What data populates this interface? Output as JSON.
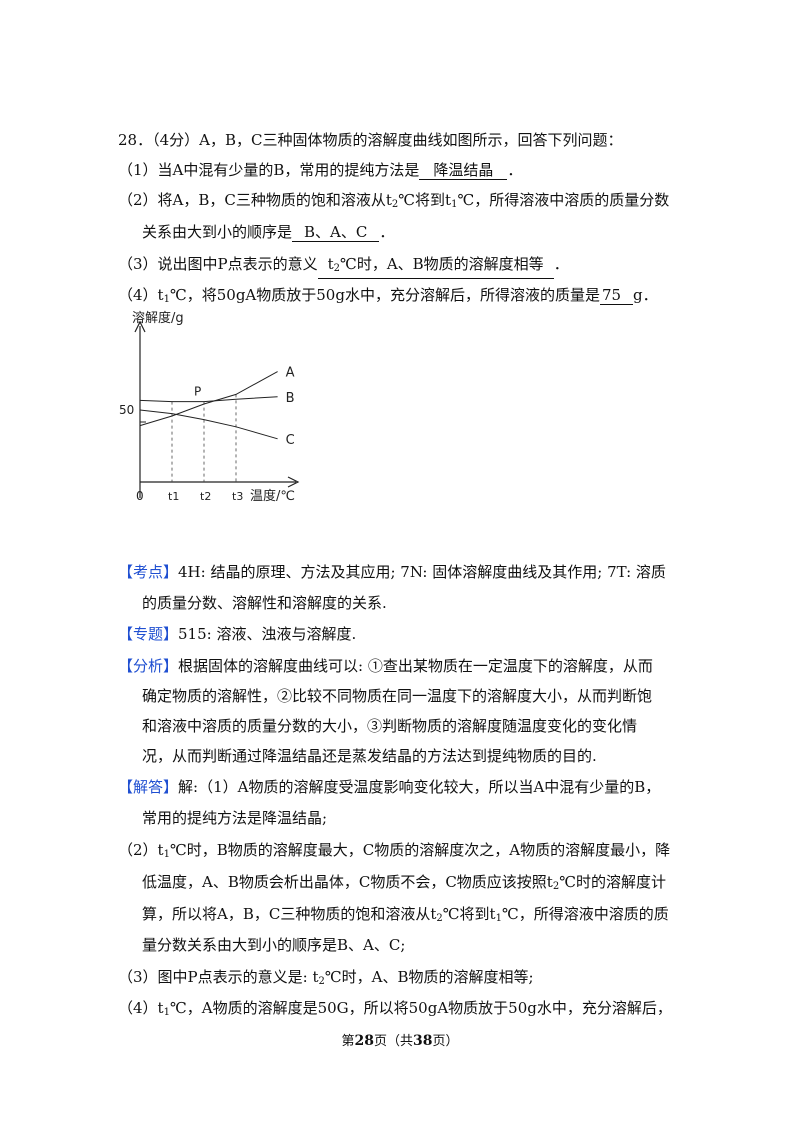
{
  "question": {
    "header": "28．（4分）A，B，C三种固体物质的溶解度曲线如图所示，回答下列问题：",
    "q1_prefix": "（1）当A中混有少量的B，常用的提纯方法是",
    "q1_answer": "降温结晶",
    "q2_a": "（2）将A，B，C三种物质的饱和溶液从t",
    "q2_b": "℃将到t",
    "q2_c": "℃，所得溶液中溶质的质量分数",
    "q2_d": "关系由大到小的顺序是",
    "q2_answer": "B、A、C",
    "q3_prefix": "（3）说出图中P点表示的意义",
    "q3_ans_a": "t",
    "q3_ans_b": "℃时，A、B物质的溶解度相等",
    "q4_a": "（4）t",
    "q4_b": "℃，将50gA物质放于50g水中，充分溶解后，所得溶液的质量是",
    "q4_answer": "75",
    "q4_unit": "g",
    "sub1": "1",
    "sub2": "2",
    "end_dot": "．"
  },
  "chart_data": {
    "type": "line",
    "ylabel": "溶解度/g",
    "xlabel": "温度/℃",
    "origin_label": "0",
    "x_ticks": [
      "t1",
      "t2",
      "t3"
    ],
    "y_ticks": [
      "50"
    ],
    "point_label": "P",
    "series": [
      {
        "name": "A",
        "points": [
          [
            0,
            47
          ],
          [
            1,
            55
          ],
          [
            2,
            65
          ],
          [
            3,
            73
          ],
          [
            4.3,
            92
          ]
        ]
      },
      {
        "name": "B",
        "points": [
          [
            0,
            68
          ],
          [
            1,
            67
          ],
          [
            2,
            67
          ],
          [
            3,
            69
          ],
          [
            4.3,
            71
          ]
        ]
      },
      {
        "name": "C",
        "points": [
          [
            0,
            60
          ],
          [
            1,
            57
          ],
          [
            2,
            52
          ],
          [
            3,
            46
          ],
          [
            4.3,
            36
          ]
        ]
      }
    ],
    "tick_positions": [
      1,
      2,
      3
    ]
  },
  "analysis": {
    "kaodian_tag": "【考点】",
    "kaodian_1": "4H: 结晶的原理、方法及其应用; 7N: 固体溶解度曲线及其作用; 7T: 溶质",
    "kaodian_2": "的质量分数、溶解性和溶解度的关系.",
    "zhuanti_tag": "【专题】",
    "zhuanti": "515: 溶液、浊液与溶解度.",
    "fenxi_tag": "【分析】",
    "fenxi_1": "根据固体的溶解度曲线可以: ①查出某物质在一定温度下的溶解度，从而",
    "fenxi_2": "确定物质的溶解性，②比较不同物质在同一温度下的溶解度大小，从而判断饱",
    "fenxi_3": "和溶液中溶质的质量分数的大小，③判断物质的溶解度随温度变化的变化情",
    "fenxi_4": "况，从而判断通过降温结晶还是蒸发结晶的方法达到提纯物质的目的.",
    "jieda_tag": "【解答】",
    "jieda_1": "解:（1）A物质的溶解度受温度影响变化较大，所以当A中混有少量的B，",
    "jieda_2": "常用的提纯方法是降温结晶;",
    "jieda_3a": "（2）t",
    "jieda_3b": "℃时，B物质的溶解度最大，C物质的溶解度次之，A物质的溶解度最小，降",
    "jieda_4a": "低温度，A、B物质会析出晶体，C物质不会，C物质应该按照t",
    "jieda_4b": "℃时的溶解度计",
    "jieda_5a": "算，所以将A，B，C三种物质的饱和溶液从t",
    "jieda_5b": "℃将到t",
    "jieda_5c": "℃，所得溶液中溶质的质",
    "jieda_6": "量分数关系由大到小的顺序是B、A、C;",
    "jieda_7a": "（3）图中P点表示的意义是: t",
    "jieda_7b": "℃时，A、B物质的溶解度相等;",
    "jieda_8a": "（4）t",
    "jieda_8b": "℃，A物质的溶解度是50G，所以将50gA物质放于50g水中，充分溶解后，"
  },
  "footer": {
    "pre": "第",
    "page": "28",
    "mid": "页（共",
    "total": "38",
    "post": "页）"
  }
}
